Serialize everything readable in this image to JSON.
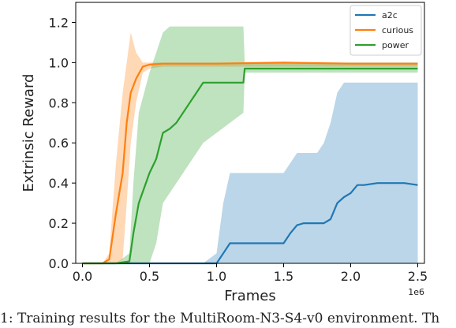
{
  "chart_data": {
    "type": "line",
    "xlabel": "Frames",
    "ylabel": "Extrinsic Reward",
    "x_exponent_label": "1e6",
    "xlim": [
      -0.05,
      2.55
    ],
    "ylim": [
      0.0,
      1.3
    ],
    "x_ticks": [
      0.0,
      0.5,
      1.0,
      1.5,
      2.0,
      2.5
    ],
    "x_tick_labels": [
      "0.0",
      "0.5",
      "1.0",
      "1.5",
      "2.0",
      "2.5"
    ],
    "y_ticks": [
      0.0,
      0.2,
      0.4,
      0.6,
      0.8,
      1.0,
      1.2
    ],
    "y_tick_labels": [
      "0.0",
      "0.2",
      "0.4",
      "0.6",
      "0.8",
      "1.0",
      "1.2"
    ],
    "grid": false,
    "legend_position": "top-right",
    "series": [
      {
        "name": "a2c",
        "color": "#1f77b4",
        "x": [
          0.0,
          0.5,
          0.9,
          1.0,
          1.05,
          1.1,
          1.2,
          1.3,
          1.4,
          1.5,
          1.55,
          1.6,
          1.65,
          1.75,
          1.8,
          1.85,
          1.9,
          1.95,
          2.0,
          2.05,
          2.1,
          2.2,
          2.3,
          2.4,
          2.5
        ],
        "y": [
          0.0,
          0.0,
          0.0,
          0.0,
          0.05,
          0.1,
          0.1,
          0.1,
          0.1,
          0.1,
          0.15,
          0.19,
          0.2,
          0.2,
          0.2,
          0.22,
          0.3,
          0.33,
          0.35,
          0.39,
          0.39,
          0.4,
          0.4,
          0.4,
          0.39
        ],
        "band_low": [
          0.0,
          0.0,
          0.0,
          0.0,
          0.0,
          0.0,
          0.0,
          0.0,
          0.0,
          0.0,
          0.0,
          0.0,
          0.0,
          0.0,
          0.0,
          0.0,
          0.0,
          0.0,
          0.0,
          0.0,
          0.0,
          0.0,
          0.0,
          0.0,
          0.0
        ],
        "band_high": [
          0.0,
          0.0,
          0.0,
          0.05,
          0.3,
          0.45,
          0.45,
          0.45,
          0.45,
          0.45,
          0.5,
          0.55,
          0.55,
          0.55,
          0.6,
          0.7,
          0.85,
          0.9,
          0.9,
          0.9,
          0.9,
          0.9,
          0.9,
          0.9,
          0.9
        ]
      },
      {
        "name": "curious",
        "color": "#ff7f0e",
        "x": [
          0.0,
          0.15,
          0.2,
          0.25,
          0.3,
          0.33,
          0.36,
          0.4,
          0.45,
          0.5,
          0.6,
          0.8,
          1.0,
          1.5,
          2.0,
          2.5
        ],
        "y": [
          0.0,
          0.0,
          0.02,
          0.25,
          0.45,
          0.7,
          0.85,
          0.92,
          0.98,
          0.99,
          0.995,
          0.995,
          0.995,
          1.0,
          0.995,
          0.995
        ],
        "band_low": [
          0.0,
          0.0,
          0.0,
          0.0,
          0.02,
          0.3,
          0.6,
          0.8,
          0.95,
          0.97,
          0.98,
          0.98,
          0.98,
          0.98,
          0.98,
          0.98
        ],
        "band_high": [
          0.0,
          0.0,
          0.05,
          0.5,
          0.85,
          1.0,
          1.15,
          1.05,
          1.0,
          1.0,
          1.0,
          1.0,
          1.0,
          1.0,
          1.0,
          1.0
        ]
      },
      {
        "name": "power",
        "color": "#2ca02c",
        "x": [
          0.0,
          0.25,
          0.35,
          0.38,
          0.42,
          0.5,
          0.55,
          0.6,
          0.65,
          0.7,
          0.8,
          0.85,
          0.9,
          1.0,
          1.1,
          1.2,
          1.21,
          1.3,
          1.5,
          1.8,
          2.0,
          2.2,
          2.5
        ],
        "y": [
          0.0,
          0.0,
          0.01,
          0.15,
          0.3,
          0.45,
          0.52,
          0.65,
          0.67,
          0.7,
          0.8,
          0.85,
          0.9,
          0.9,
          0.9,
          0.9,
          0.97,
          0.97,
          0.97,
          0.97,
          0.97,
          0.97,
          0.97
        ],
        "band_low": [
          0.0,
          0.0,
          0.0,
          0.0,
          0.0,
          0.0,
          0.1,
          0.3,
          0.35,
          0.4,
          0.5,
          0.55,
          0.6,
          0.65,
          0.7,
          0.75,
          0.95,
          0.95,
          0.95,
          0.95,
          0.95,
          0.95,
          0.95
        ],
        "band_high": [
          0.0,
          0.0,
          0.05,
          0.4,
          0.75,
          0.95,
          1.05,
          1.15,
          1.18,
          1.18,
          1.18,
          1.18,
          1.18,
          1.18,
          1.18,
          1.18,
          1.0,
          1.0,
          1.0,
          1.0,
          1.0,
          1.0,
          1.0
        ]
      }
    ]
  },
  "caption": "1: Training results for the MultiRoom-N3-S4-v0 environment. Th"
}
